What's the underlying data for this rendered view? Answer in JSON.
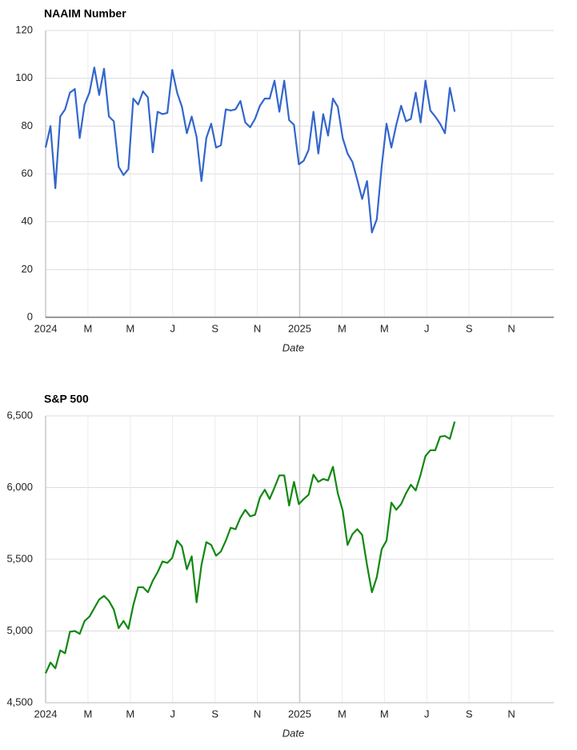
{
  "chart_data": [
    {
      "type": "line",
      "title": "NAAIM Number",
      "x_label": "Date",
      "xlim": [
        0,
        24
      ],
      "xticks": [
        {
          "value": 0,
          "label": "2024"
        },
        {
          "value": 2,
          "label": "M"
        },
        {
          "value": 4,
          "label": "M"
        },
        {
          "value": 6,
          "label": "J"
        },
        {
          "value": 8,
          "label": "S"
        },
        {
          "value": 10,
          "label": "N"
        },
        {
          "value": 12,
          "label": "2025"
        },
        {
          "value": 14,
          "label": "M"
        },
        {
          "value": 16,
          "label": "M"
        },
        {
          "value": 18,
          "label": "J"
        },
        {
          "value": 20,
          "label": "S"
        },
        {
          "value": 22,
          "label": "N"
        }
      ],
      "ylim": [
        0,
        120
      ],
      "yticks": [
        0,
        20,
        40,
        60,
        80,
        100,
        120
      ],
      "grid": true,
      "x": [
        0,
        0.23,
        0.46,
        0.69,
        0.92,
        1.15,
        1.38,
        1.61,
        1.84,
        2.07,
        2.3,
        2.53,
        2.76,
        2.99,
        3.22,
        3.45,
        3.68,
        3.91,
        4.14,
        4.37,
        4.6,
        4.83,
        5.06,
        5.29,
        5.52,
        5.75,
        5.98,
        6.21,
        6.44,
        6.67,
        6.9,
        7.13,
        7.36,
        7.59,
        7.82,
        8.05,
        8.28,
        8.51,
        8.74,
        8.97,
        9.2,
        9.43,
        9.66,
        9.89,
        10.12,
        10.35,
        10.58,
        10.81,
        11.04,
        11.27,
        11.5,
        11.73,
        11.96,
        12.19,
        12.42,
        12.65,
        12.88,
        13.11,
        13.34,
        13.57,
        13.8,
        14.03,
        14.26,
        14.49,
        14.72,
        14.95,
        15.18,
        15.41,
        15.64,
        15.87,
        16.1,
        16.33,
        16.56,
        16.79,
        17.02,
        17.25,
        17.48,
        17.71,
        17.94,
        18.17,
        18.4,
        18.63,
        18.86,
        19.09,
        19.32
      ],
      "series": [
        {
          "name": "NAAIM Number",
          "color": "#3366cc",
          "values": [
            71,
            80,
            54,
            84,
            87,
            94,
            95.5,
            75,
            89,
            94,
            104.5,
            93,
            104,
            84,
            82,
            63,
            59.5,
            62,
            91.5,
            89,
            94.5,
            92,
            69,
            86,
            85,
            85.5,
            103.5,
            94,
            88,
            77,
            84,
            75.5,
            57,
            75,
            81,
            71,
            72,
            87,
            86.5,
            87,
            90.5,
            81.5,
            79.5,
            83,
            88.5,
            91.5,
            91.5,
            99,
            86,
            99,
            82.5,
            80.5,
            64,
            65.5,
            70,
            86,
            68.5,
            85,
            76,
            91.5,
            88,
            75,
            68.5,
            65,
            57.5,
            49.5,
            57,
            35.5,
            41,
            63,
            81,
            71,
            80.5,
            88.5,
            82,
            83,
            94,
            81.5,
            99,
            86.5,
            84,
            81,
            77,
            96,
            86
          ]
        }
      ]
    },
    {
      "type": "line",
      "title": "S&P 500",
      "x_label": "Date",
      "xlim": [
        0,
        24
      ],
      "xticks": [
        {
          "value": 0,
          "label": "2024"
        },
        {
          "value": 2,
          "label": "M"
        },
        {
          "value": 4,
          "label": "M"
        },
        {
          "value": 6,
          "label": "J"
        },
        {
          "value": 8,
          "label": "S"
        },
        {
          "value": 10,
          "label": "N"
        },
        {
          "value": 12,
          "label": "2025"
        },
        {
          "value": 14,
          "label": "M"
        },
        {
          "value": 16,
          "label": "M"
        },
        {
          "value": 18,
          "label": "J"
        },
        {
          "value": 20,
          "label": "S"
        },
        {
          "value": 22,
          "label": "N"
        }
      ],
      "ylim": [
        4500,
        6500
      ],
      "yticks": [
        {
          "value": 4500,
          "label": "4,500"
        },
        {
          "value": 5000,
          "label": "5,000"
        },
        {
          "value": 5500,
          "label": "5,500"
        },
        {
          "value": 6000,
          "label": "6,000"
        },
        {
          "value": 6500,
          "label": "6,500"
        }
      ],
      "grid": true,
      "x": [
        0,
        0.23,
        0.46,
        0.69,
        0.92,
        1.15,
        1.38,
        1.61,
        1.84,
        2.07,
        2.3,
        2.53,
        2.76,
        2.99,
        3.22,
        3.45,
        3.68,
        3.91,
        4.14,
        4.37,
        4.6,
        4.83,
        5.06,
        5.29,
        5.52,
        5.75,
        5.98,
        6.21,
        6.44,
        6.67,
        6.9,
        7.13,
        7.36,
        7.59,
        7.82,
        8.05,
        8.28,
        8.51,
        8.74,
        8.97,
        9.2,
        9.43,
        9.66,
        9.89,
        10.12,
        10.35,
        10.58,
        10.81,
        11.04,
        11.27,
        11.5,
        11.73,
        11.96,
        12.19,
        12.42,
        12.65,
        12.88,
        13.11,
        13.34,
        13.57,
        13.8,
        14.03,
        14.26,
        14.49,
        14.72,
        14.95,
        15.18,
        15.41,
        15.64,
        15.87,
        16.1,
        16.33,
        16.56,
        16.79,
        17.02,
        17.25,
        17.48,
        17.71,
        17.94,
        18.17,
        18.4,
        18.63,
        18.86,
        19.09,
        19.32
      ],
      "series": [
        {
          "name": "S&P 500",
          "color": "#118811",
          "values": [
            4705,
            4780,
            4740,
            4865,
            4845,
            4995,
            5000,
            4980,
            5070,
            5100,
            5160,
            5220,
            5245,
            5210,
            5150,
            5020,
            5070,
            5015,
            5180,
            5305,
            5305,
            5270,
            5350,
            5410,
            5485,
            5475,
            5510,
            5630,
            5590,
            5430,
            5520,
            5200,
            5460,
            5620,
            5600,
            5525,
            5555,
            5630,
            5720,
            5710,
            5790,
            5845,
            5800,
            5810,
            5930,
            5985,
            5920,
            6000,
            6085,
            6085,
            5875,
            6040,
            5885,
            5920,
            5950,
            6090,
            6040,
            6060,
            6050,
            6145,
            5960,
            5840,
            5600,
            5675,
            5710,
            5670,
            5460,
            5270,
            5375,
            5570,
            5630,
            5895,
            5845,
            5885,
            5960,
            6020,
            5980,
            6090,
            6220,
            6260,
            6260,
            6355,
            6360,
            6340,
            6460
          ]
        }
      ]
    }
  ]
}
